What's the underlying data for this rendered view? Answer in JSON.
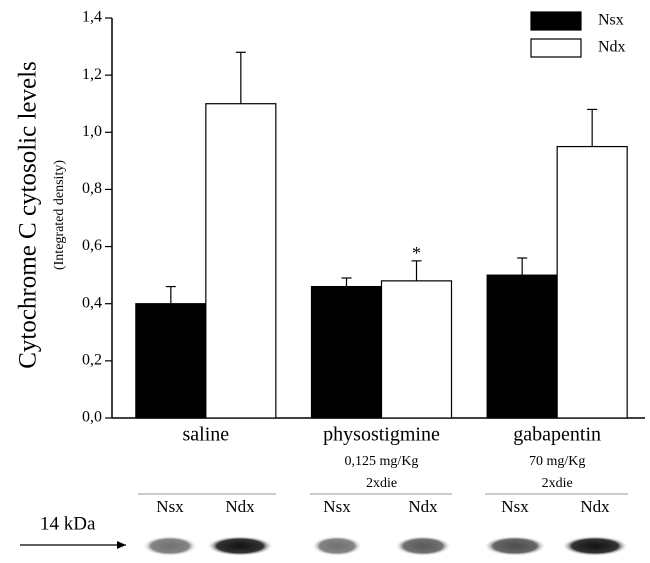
{
  "chart_data": {
    "type": "bar",
    "y_label": "Cytochrome C cytosolic levels",
    "y_sublabel": "(Integrated density)",
    "categories": [
      "saline",
      "physostigmine",
      "gabapentin"
    ],
    "category_notes": [
      [],
      [
        "0,125 mg/Kg",
        "2xdie"
      ],
      [
        "70 mg/Kg",
        "2xdie"
      ]
    ],
    "series": [
      {
        "name": "Nsx",
        "color": "#000000",
        "values": [
          0.4,
          0.46,
          0.5
        ],
        "errors": [
          0.06,
          0.03,
          0.06
        ]
      },
      {
        "name": "Ndx",
        "color": "#ffffff",
        "values": [
          1.1,
          0.48,
          0.95
        ],
        "errors": [
          0.18,
          0.07,
          0.13
        ]
      }
    ],
    "annotation": "*",
    "ylim": [
      0,
      1.4
    ],
    "yticks": [
      {
        "value": 0,
        "label": "0,0"
      },
      {
        "value": 0.2,
        "label": "0,2"
      },
      {
        "value": 0.4,
        "label": "0,4"
      },
      {
        "value": 0.6,
        "label": "0,6"
      },
      {
        "value": 0.8,
        "label": "0,8"
      },
      {
        "value": 1.0,
        "label": "1,0"
      },
      {
        "value": 1.2,
        "label": "1,2"
      },
      {
        "value": 1.4,
        "label": "1,4"
      }
    ],
    "legend": "top-right"
  },
  "blot": {
    "marker": "14 kDa",
    "lanes": [
      "Nsx",
      "Ndx",
      "Nsx",
      "Ndx",
      "Nsx",
      "Ndx"
    ]
  }
}
